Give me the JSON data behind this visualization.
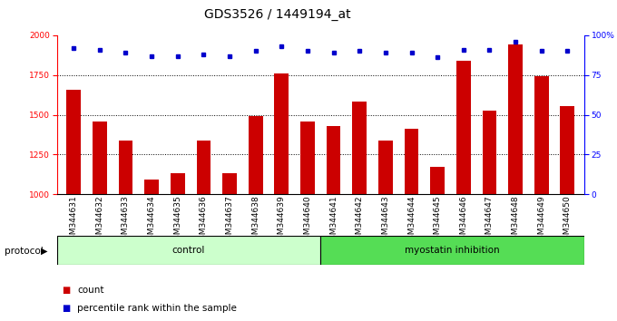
{
  "title": "GDS3526 / 1449194_at",
  "samples": [
    "GSM344631",
    "GSM344632",
    "GSM344633",
    "GSM344634",
    "GSM344635",
    "GSM344636",
    "GSM344637",
    "GSM344638",
    "GSM344639",
    "GSM344640",
    "GSM344641",
    "GSM344642",
    "GSM344643",
    "GSM344644",
    "GSM344645",
    "GSM344646",
    "GSM344647",
    "GSM344648",
    "GSM344649",
    "GSM344650"
  ],
  "counts": [
    1660,
    1455,
    1340,
    1090,
    1130,
    1335,
    1130,
    1490,
    1760,
    1460,
    1430,
    1585,
    1335,
    1410,
    1170,
    1840,
    1525,
    1940,
    1745,
    1555
  ],
  "percentile_ranks": [
    92,
    91,
    89,
    87,
    87,
    88,
    87,
    90,
    93,
    90,
    89,
    90,
    89,
    89,
    86,
    91,
    91,
    96,
    90,
    90
  ],
  "control_count": 10,
  "ylim_left": [
    1000,
    2000
  ],
  "ylim_right": [
    0,
    100
  ],
  "yticks_left": [
    1000,
    1250,
    1500,
    1750,
    2000
  ],
  "yticks_right": [
    0,
    25,
    50,
    75,
    100
  ],
  "bar_color": "#cc0000",
  "dot_color": "#0000cc",
  "control_color": "#ccffcc",
  "myostatin_color": "#55dd55",
  "title_fontsize": 10,
  "tick_fontsize": 6.5,
  "label_fontsize": 7.5
}
